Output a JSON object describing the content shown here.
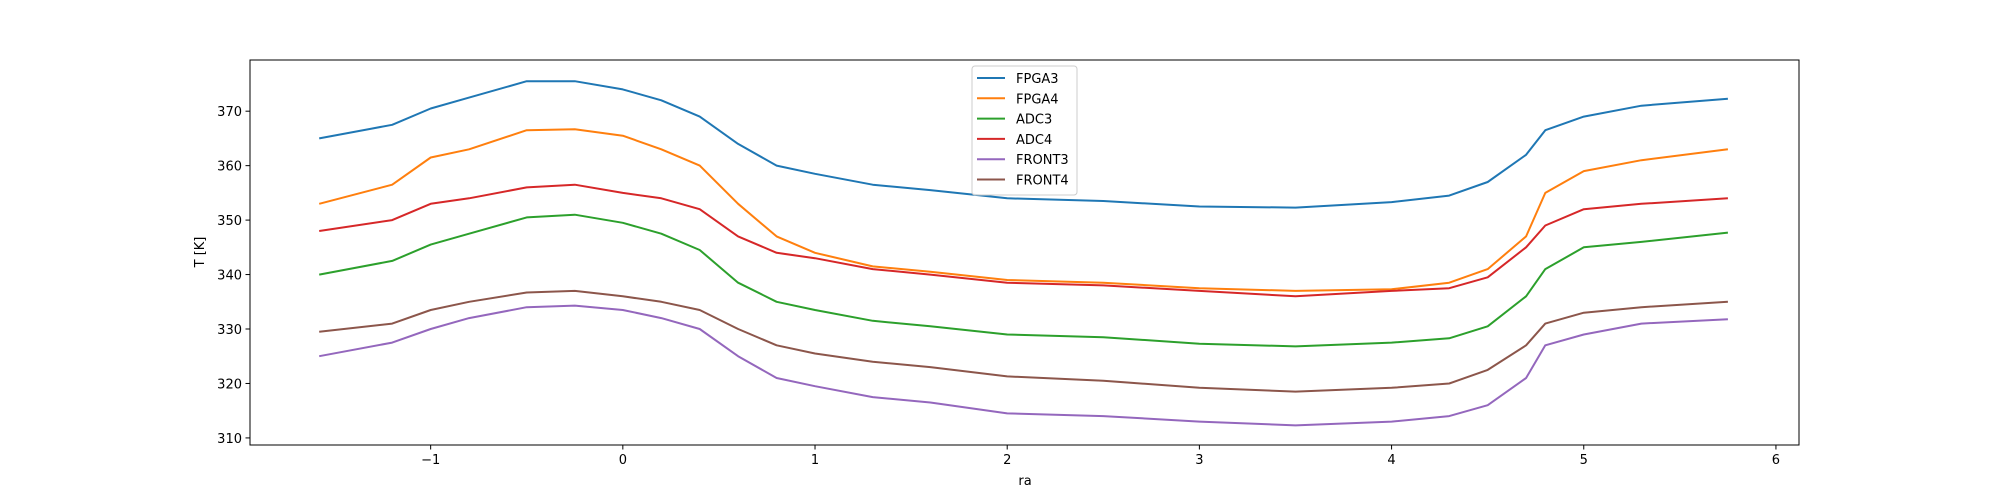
{
  "chart_data": {
    "type": "line",
    "title": "",
    "xlabel": "ra",
    "ylabel": "T [K]",
    "xlim": [
      -1.94,
      6.12
    ],
    "ylim": [
      308.7,
      379.4
    ],
    "xticks": [
      -1,
      0,
      1,
      2,
      3,
      4,
      5,
      6
    ],
    "xtick_labels": [
      "−1",
      "0",
      "1",
      "2",
      "3",
      "4",
      "5",
      "6"
    ],
    "yticks": [
      310,
      320,
      330,
      340,
      350,
      360,
      370
    ],
    "ytick_labels": [
      "310",
      "320",
      "330",
      "340",
      "350",
      "360",
      "370"
    ],
    "grid": false,
    "legend_position": "top-center",
    "x": [
      -1.58,
      -1.2,
      -1.0,
      -0.8,
      -0.5,
      -0.25,
      0,
      0.2,
      0.4,
      0.6,
      0.8,
      1.0,
      1.3,
      1.6,
      2.0,
      2.5,
      3.0,
      3.5,
      4.0,
      4.3,
      4.5,
      4.7,
      4.8,
      5.0,
      5.3,
      5.75
    ],
    "series": [
      {
        "name": "FPGA3",
        "color": "#1f77b4",
        "values": [
          365,
          367.5,
          370.5,
          372.5,
          375.5,
          375.5,
          374,
          372,
          369,
          364,
          360,
          358.5,
          356.5,
          355.5,
          354,
          353.5,
          352.5,
          352.3,
          353.3,
          354.5,
          357,
          362,
          366.5,
          369,
          371,
          372.3
        ]
      },
      {
        "name": "FPGA4",
        "color": "#ff7f0e",
        "values": [
          353,
          356.5,
          361.5,
          363,
          366.5,
          366.7,
          365.5,
          363,
          360,
          353,
          347,
          344,
          341.5,
          340.5,
          339,
          338.5,
          337.5,
          337,
          337.3,
          338.5,
          341,
          347,
          355,
          359,
          361,
          363
        ]
      },
      {
        "name": "ADC3",
        "color": "#2ca02c",
        "values": [
          340,
          342.5,
          345.5,
          347.5,
          350.5,
          351,
          349.5,
          347.5,
          344.5,
          338.5,
          335,
          333.5,
          331.5,
          330.5,
          329,
          328.5,
          327.3,
          326.8,
          327.5,
          328.3,
          330.5,
          336,
          341,
          345,
          346,
          347.7
        ]
      },
      {
        "name": "ADC4",
        "color": "#d62728",
        "values": [
          348,
          350,
          353,
          354,
          356,
          356.5,
          355,
          354,
          352,
          347,
          344,
          343,
          341,
          340,
          338.5,
          338,
          337,
          336,
          337,
          337.5,
          339.5,
          345,
          349,
          352,
          353,
          354
        ]
      },
      {
        "name": "FRONT3",
        "color": "#9467bd",
        "values": [
          325,
          327.5,
          330,
          332,
          334,
          334.3,
          333.5,
          332,
          330,
          325,
          321,
          319.5,
          317.5,
          316.5,
          314.5,
          314,
          313,
          312.3,
          313,
          314,
          316,
          321,
          327,
          329,
          331,
          331.8
        ]
      },
      {
        "name": "FRONT4",
        "color": "#8c564b",
        "values": [
          329.5,
          331,
          333.5,
          335,
          336.7,
          337,
          336,
          335,
          333.5,
          330,
          327,
          325.5,
          324,
          323,
          321.3,
          320.5,
          319.2,
          318.5,
          319.2,
          320,
          322.5,
          327,
          331,
          333,
          334,
          335
        ]
      }
    ]
  }
}
